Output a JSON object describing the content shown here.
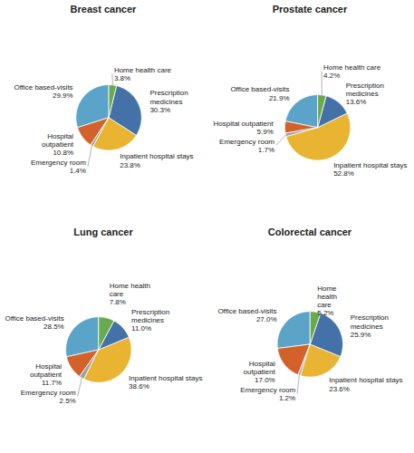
{
  "chart_data": [
    {
      "type": "pie",
      "title": "Breast cancer",
      "categories": [
        "Office based-visits",
        "Hospital\noutpatient",
        "Emergency room",
        "Inpatient hospital stays",
        "Prescription\nmedicines",
        "Home health care"
      ],
      "values": [
        29.9,
        10.8,
        1.4,
        23.8,
        30.3,
        3.8
      ],
      "value_labels": [
        "29.9%",
        "10.8%",
        "1.4%",
        "23.8%",
        "30.3%",
        "3.8%"
      ],
      "colors": [
        "#5ba3c9",
        "#d2622a",
        "#a0a0a0",
        "#e8b432",
        "#4472a8",
        "#6aaa4e"
      ],
      "data_labels": true
    },
    {
      "type": "pie",
      "title": "Prostate cancer",
      "categories": [
        "Office based-visits",
        "Hospital outpatient",
        "Emergency room",
        "Inpatient hospital stays",
        "Prescription\nmedicines",
        "Home health care"
      ],
      "values": [
        21.9,
        5.9,
        1.7,
        52.8,
        13.6,
        4.2
      ],
      "value_labels": [
        "21.9%",
        "5.9%",
        "1.7%",
        "52.8%",
        "13.6%",
        "4.2%"
      ],
      "colors": [
        "#5ba3c9",
        "#d2622a",
        "#a0a0a0",
        "#e8b432",
        "#4472a8",
        "#6aaa4e"
      ],
      "data_labels": true
    },
    {
      "type": "pie",
      "title": "Lung cancer",
      "categories": [
        "Office based-visits",
        "Hospital\noutpatient",
        "Emergency room",
        "Inpatient hospital stays",
        "Prescription\nmedicines",
        "Home health\ncare"
      ],
      "values": [
        28.5,
        11.7,
        2.5,
        38.6,
        11.0,
        7.8
      ],
      "value_labels": [
        "28.5%",
        "11.7%",
        "2.5%",
        "38.6%",
        "11.0%",
        "7.8%"
      ],
      "colors": [
        "#5ba3c9",
        "#d2622a",
        "#a0a0a0",
        "#e8b432",
        "#4472a8",
        "#6aaa4e"
      ],
      "data_labels": true
    },
    {
      "type": "pie",
      "title": "Colorectal cancer",
      "categories": [
        "Office based-visits",
        "Hospital\noutpatient",
        "Emergency room",
        "Inpatient hospital stays",
        "Prescription\nmedicines",
        "Home\nhealth\ncare"
      ],
      "values": [
        27.0,
        17.0,
        1.2,
        23.6,
        25.9,
        5.2
      ],
      "value_labels": [
        "27.0%",
        "17.0%",
        "1.2%",
        "23.6%",
        "25.9%",
        "5.2%"
      ],
      "colors": [
        "#5ba3c9",
        "#d2622a",
        "#a0a0a0",
        "#e8b432",
        "#4472a8",
        "#6aaa4e"
      ],
      "data_labels": true
    }
  ]
}
